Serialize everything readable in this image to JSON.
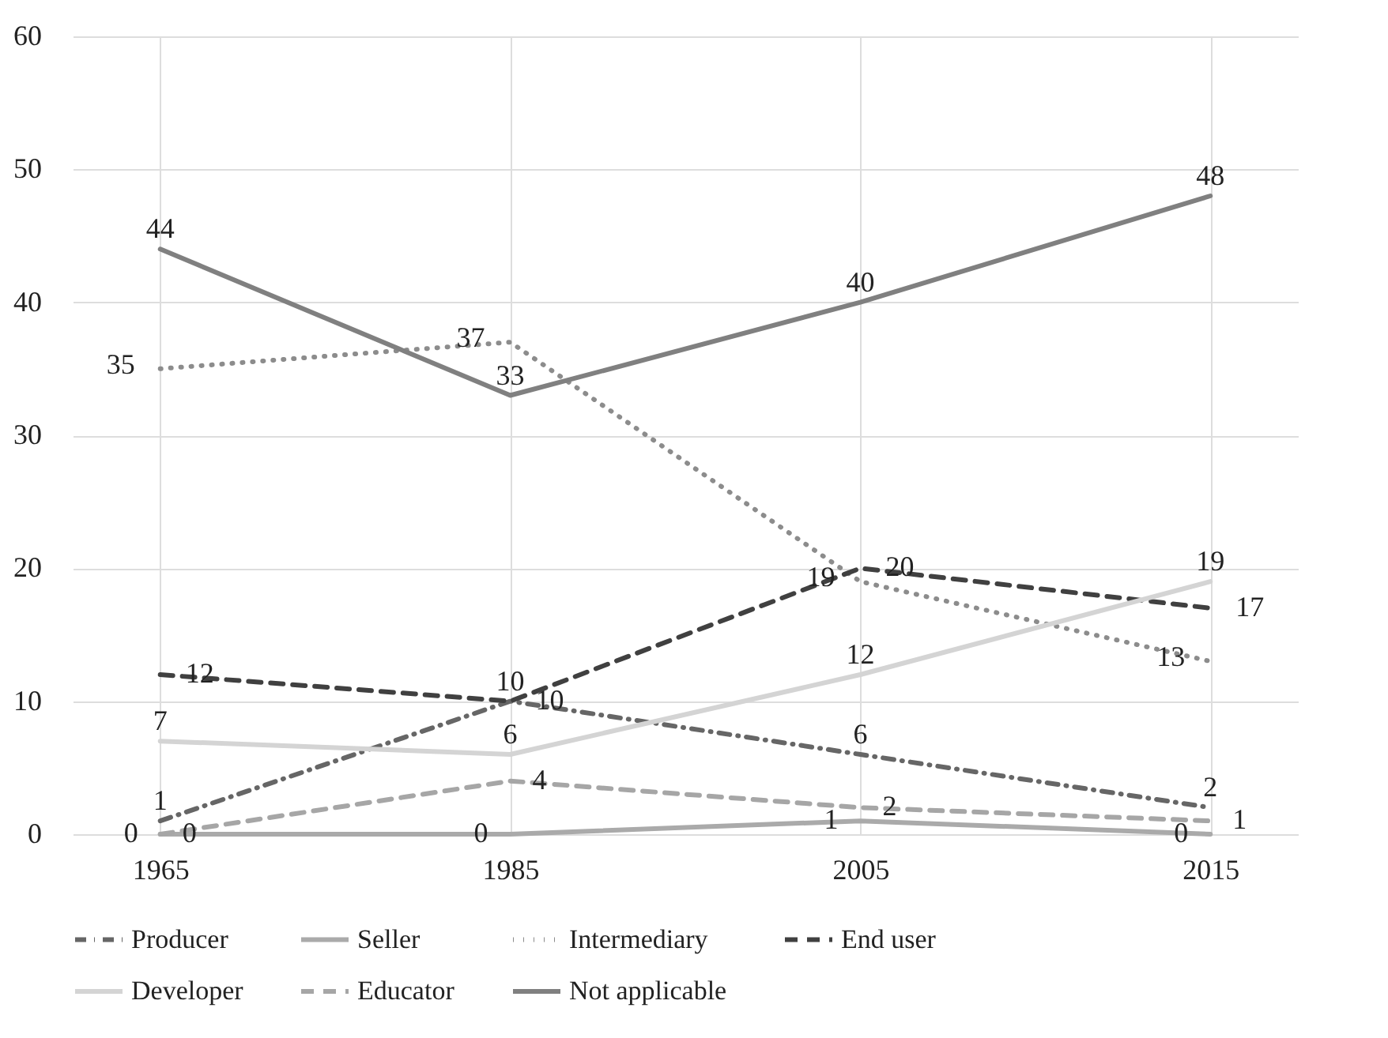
{
  "chart_data": {
    "type": "line",
    "categories": [
      "1965",
      "1985",
      "2005",
      "2015"
    ],
    "ylim": [
      0,
      60
    ],
    "yticks": [
      0,
      10,
      20,
      30,
      40,
      50,
      60
    ],
    "grid": true,
    "legend": "bottom",
    "data_labels": true,
    "series": [
      {
        "name": "Producer",
        "color": "#666666",
        "line_style": "dashdot",
        "values": [
          1,
          10,
          6,
          2
        ]
      },
      {
        "name": "Seller",
        "color": "#aaaaaa",
        "line_style": "solid",
        "values": [
          0,
          0,
          1,
          0
        ]
      },
      {
        "name": "Intermediary",
        "color": "#8c8c8c",
        "line_style": "dotted",
        "values": [
          35,
          37,
          19,
          13
        ]
      },
      {
        "name": "End user",
        "color": "#404040",
        "line_style": "dashed",
        "values": [
          12,
          10,
          20,
          17
        ]
      },
      {
        "name": "Developer",
        "color": "#d4d4d4",
        "line_style": "solid",
        "values": [
          7,
          6,
          12,
          19
        ]
      },
      {
        "name": "Educator",
        "color": "#a6a6a6",
        "line_style": "dashed",
        "values": [
          0,
          4,
          2,
          1
        ]
      },
      {
        "name": "Not applicable",
        "color": "#808080",
        "line_style": "solid",
        "values": [
          44,
          33,
          40,
          48
        ]
      }
    ]
  }
}
